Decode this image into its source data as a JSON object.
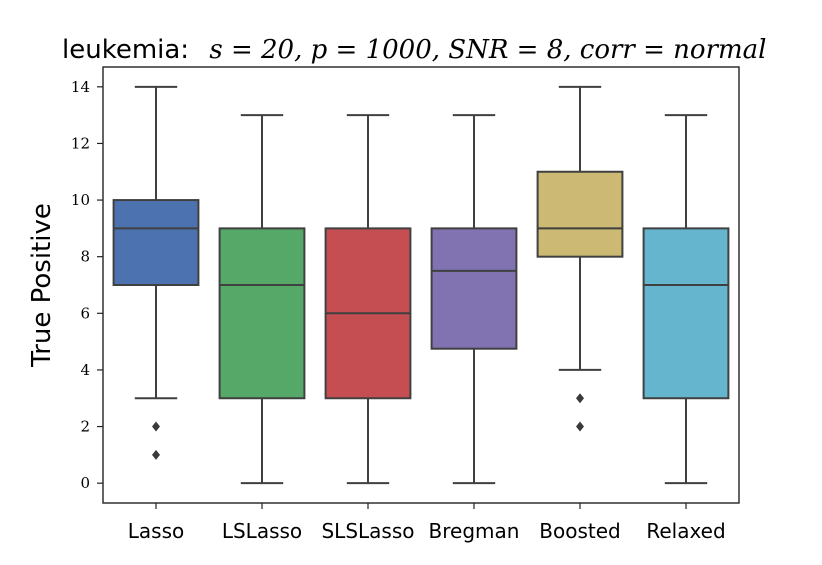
{
  "chart_data": {
    "type": "box",
    "title": {
      "dataset": "leukemia:",
      "params": "s = 20, p = 1000, SNR = 8, corr = normal"
    },
    "xlabel": "",
    "ylabel": "True Positive",
    "ylim": [
      -0.7,
      14.7
    ],
    "yticks": [
      0,
      2,
      4,
      6,
      8,
      10,
      12,
      14
    ],
    "grid": false,
    "categories": [
      "Lasso",
      "LSLasso",
      "SLSLasso",
      "Bregman",
      "Boosted",
      "Relaxed"
    ],
    "series": [
      {
        "name": "Lasso",
        "color": "#4c72b0",
        "whisker_low": 3,
        "q1": 7,
        "median": 9,
        "q3": 10,
        "whisker_high": 14,
        "outliers": [
          2,
          1
        ]
      },
      {
        "name": "LSLasso",
        "color": "#55a868",
        "whisker_low": 0,
        "q1": 3,
        "median": 7,
        "q3": 9,
        "whisker_high": 13,
        "outliers": []
      },
      {
        "name": "SLSLasso",
        "color": "#c44e52",
        "whisker_low": 0,
        "q1": 3,
        "median": 6,
        "q3": 9,
        "whisker_high": 13,
        "outliers": []
      },
      {
        "name": "Bregman",
        "color": "#8172b2",
        "whisker_low": 0,
        "q1": 4.75,
        "median": 7.5,
        "q3": 9,
        "whisker_high": 13,
        "outliers": []
      },
      {
        "name": "Boosted",
        "color": "#ccb974",
        "whisker_low": 4,
        "q1": 8,
        "median": 9,
        "q3": 11,
        "whisker_high": 14,
        "outliers": [
          3,
          2
        ]
      },
      {
        "name": "Relaxed",
        "color": "#64b5cd",
        "whisker_low": 0,
        "q1": 3,
        "median": 7,
        "q3": 9,
        "whisker_high": 13,
        "outliers": []
      }
    ]
  }
}
